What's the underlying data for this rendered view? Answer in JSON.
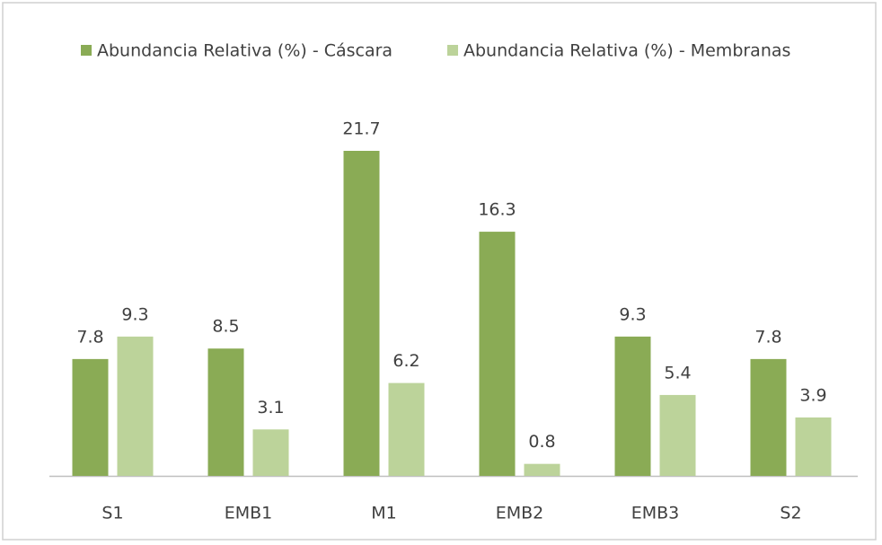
{
  "chart_data": {
    "type": "bar",
    "categories": [
      "S1",
      "EMB1",
      "M1",
      "EMB2",
      "EMB3",
      "S2"
    ],
    "series": [
      {
        "name": "Abundancia Relativa (%) - Cáscara",
        "color": "#8aab55",
        "values": [
          7.8,
          8.5,
          21.7,
          16.3,
          9.3,
          7.8
        ]
      },
      {
        "name": "Abundancia Relativa (%) - Membranas",
        "color": "#bcd39a",
        "values": [
          9.3,
          3.1,
          6.2,
          0.8,
          5.4,
          3.9
        ]
      }
    ],
    "legend": "top"
  }
}
